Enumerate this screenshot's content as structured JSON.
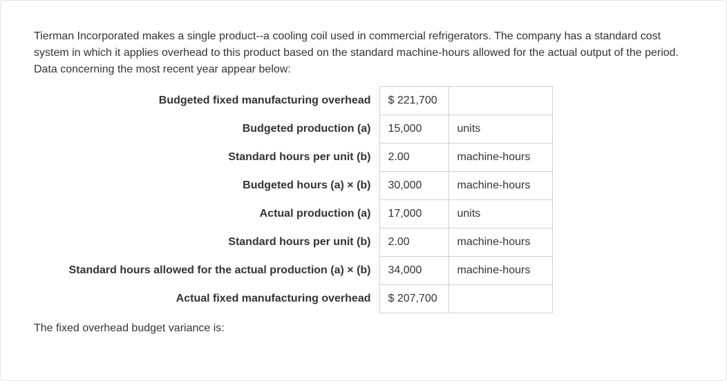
{
  "intro": "Tierman Incorporated makes a single product--a cooling coil used in commercial refrigerators. The company has a standard cost system in which it applies overhead to this product based on the standard machine-hours allowed for the actual output of the period. Data concerning the most recent year appear below:",
  "table": {
    "rows": [
      {
        "label": "Budgeted fixed manufacturing overhead",
        "value": "$ 221,700",
        "unit": ""
      },
      {
        "label": "Budgeted production (a)",
        "value": "15,000",
        "unit": "units"
      },
      {
        "label": "Standard hours per unit (b)",
        "value": "2.00",
        "unit": "machine-hours"
      },
      {
        "label": "Budgeted hours (a) × (b)",
        "value": "30,000",
        "unit": "machine-hours"
      },
      {
        "label": "Actual production (a)",
        "value": "17,000",
        "unit": "units"
      },
      {
        "label": "Standard hours per unit (b)",
        "value": "2.00",
        "unit": "machine-hours"
      },
      {
        "label": "Standard hours allowed for the actual production (a) × (b)",
        "value": "34,000",
        "unit": "machine-hours"
      },
      {
        "label": "Actual fixed manufacturing overhead",
        "value": "$ 207,700",
        "unit": ""
      }
    ]
  },
  "question": "The fixed overhead budget variance is:",
  "colors": {
    "text": "#333333",
    "border": "#d0d0d0",
    "background": "#ffffff"
  }
}
